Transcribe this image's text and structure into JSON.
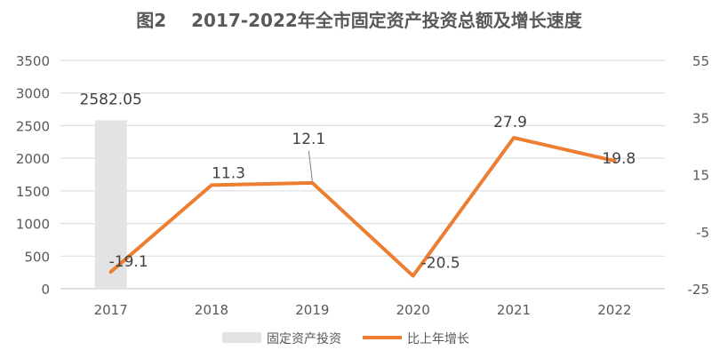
{
  "chart_data": {
    "type": "bar+line",
    "title_prefix": "图2",
    "title": "2017-2022年全市固定资产投资总额及增长速度",
    "categories": [
      "2017",
      "2018",
      "2019",
      "2020",
      "2021",
      "2022"
    ],
    "series": [
      {
        "name": "固定资产投资",
        "type": "bar",
        "axis": "left",
        "values": [
          2582.05,
          null,
          null,
          null,
          null,
          null
        ],
        "labels": [
          "2582.05",
          "",
          "",
          "",
          "",
          ""
        ],
        "color": "#e3e3e3"
      },
      {
        "name": "比上年增长",
        "type": "line",
        "axis": "right",
        "values": [
          -19.1,
          11.3,
          12.1,
          -20.5,
          27.9,
          19.8
        ],
        "labels": [
          "-19.1",
          "11.3",
          "12.1",
          "-20.5",
          "27.9",
          "19.8"
        ],
        "color": "#ed7d31"
      }
    ],
    "y_left": {
      "min": 0,
      "max": 3500,
      "ticks": [
        "0",
        "500",
        "1000",
        "1500",
        "2000",
        "2500",
        "3000",
        "3500"
      ]
    },
    "y_right": {
      "min": -25,
      "max": 55,
      "ticks": [
        "-25",
        "-5",
        "15",
        "35",
        "55"
      ]
    },
    "grid": true,
    "legend_position": "bottom"
  }
}
